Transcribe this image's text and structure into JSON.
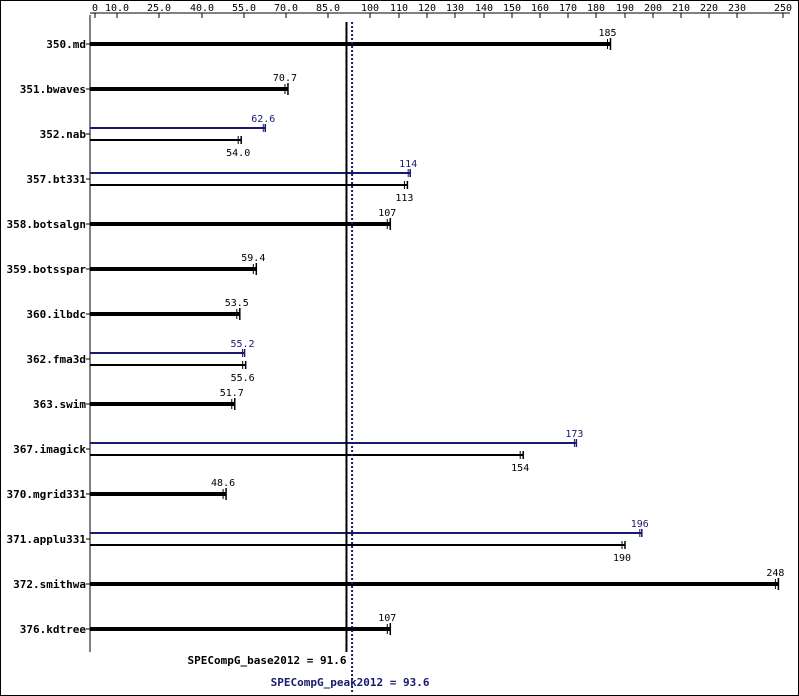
{
  "chart_data": {
    "type": "bar",
    "orientation": "horizontal",
    "title": "",
    "xlabel": "",
    "ylabel": "",
    "xlim": [
      0,
      250
    ],
    "ticks": [
      0,
      10,
      25,
      40,
      55,
      70,
      85,
      100,
      110,
      120,
      130,
      140,
      150,
      160,
      170,
      180,
      190,
      200,
      210,
      220,
      230,
      250
    ],
    "tick_labels": [
      "0",
      "10.0",
      "25.0",
      "40.0",
      "55.0",
      "70.0",
      "85.0",
      "100",
      "110",
      "120",
      "130",
      "140",
      "150",
      "160",
      "170",
      "180",
      "190",
      "200",
      "210",
      "220",
      "230",
      "250"
    ],
    "categories": [
      "350.md",
      "351.bwaves",
      "352.nab",
      "357.bt331",
      "358.botsalgn",
      "359.botsspar",
      "360.ilbdc",
      "362.fma3d",
      "363.swim",
      "367.imagick",
      "370.mgrid331",
      "371.applu331",
      "372.smithwa",
      "376.kdtree"
    ],
    "series": [
      {
        "name": "peak",
        "color": "#191970",
        "values": [
          null,
          null,
          62.6,
          114,
          null,
          null,
          null,
          55.2,
          null,
          173,
          null,
          196,
          null,
          null
        ],
        "labels": [
          "",
          "",
          "62.6",
          "114",
          "",
          "",
          "",
          "55.2",
          "",
          "173",
          "",
          "196",
          "",
          ""
        ]
      },
      {
        "name": "base",
        "color": "#000000",
        "values": [
          185,
          70.7,
          54.0,
          113,
          107,
          59.4,
          53.5,
          55.6,
          51.7,
          154,
          48.6,
          190,
          248,
          107
        ],
        "labels": [
          "185",
          "70.7",
          "54.0",
          "113",
          "107",
          "59.4",
          "53.5",
          "55.6",
          "51.7",
          "154",
          "48.6",
          "190",
          "248",
          "107"
        ]
      }
    ],
    "reference_lines": [
      {
        "label": "SPECompG_base2012 = 91.6",
        "value": 91.6,
        "style": "solid",
        "color": "#000000"
      },
      {
        "label": "SPECompG_peak2012 = 93.6",
        "value": 93.6,
        "style": "dotted",
        "color": "#191970"
      }
    ],
    "grid": false,
    "legend": "none"
  }
}
